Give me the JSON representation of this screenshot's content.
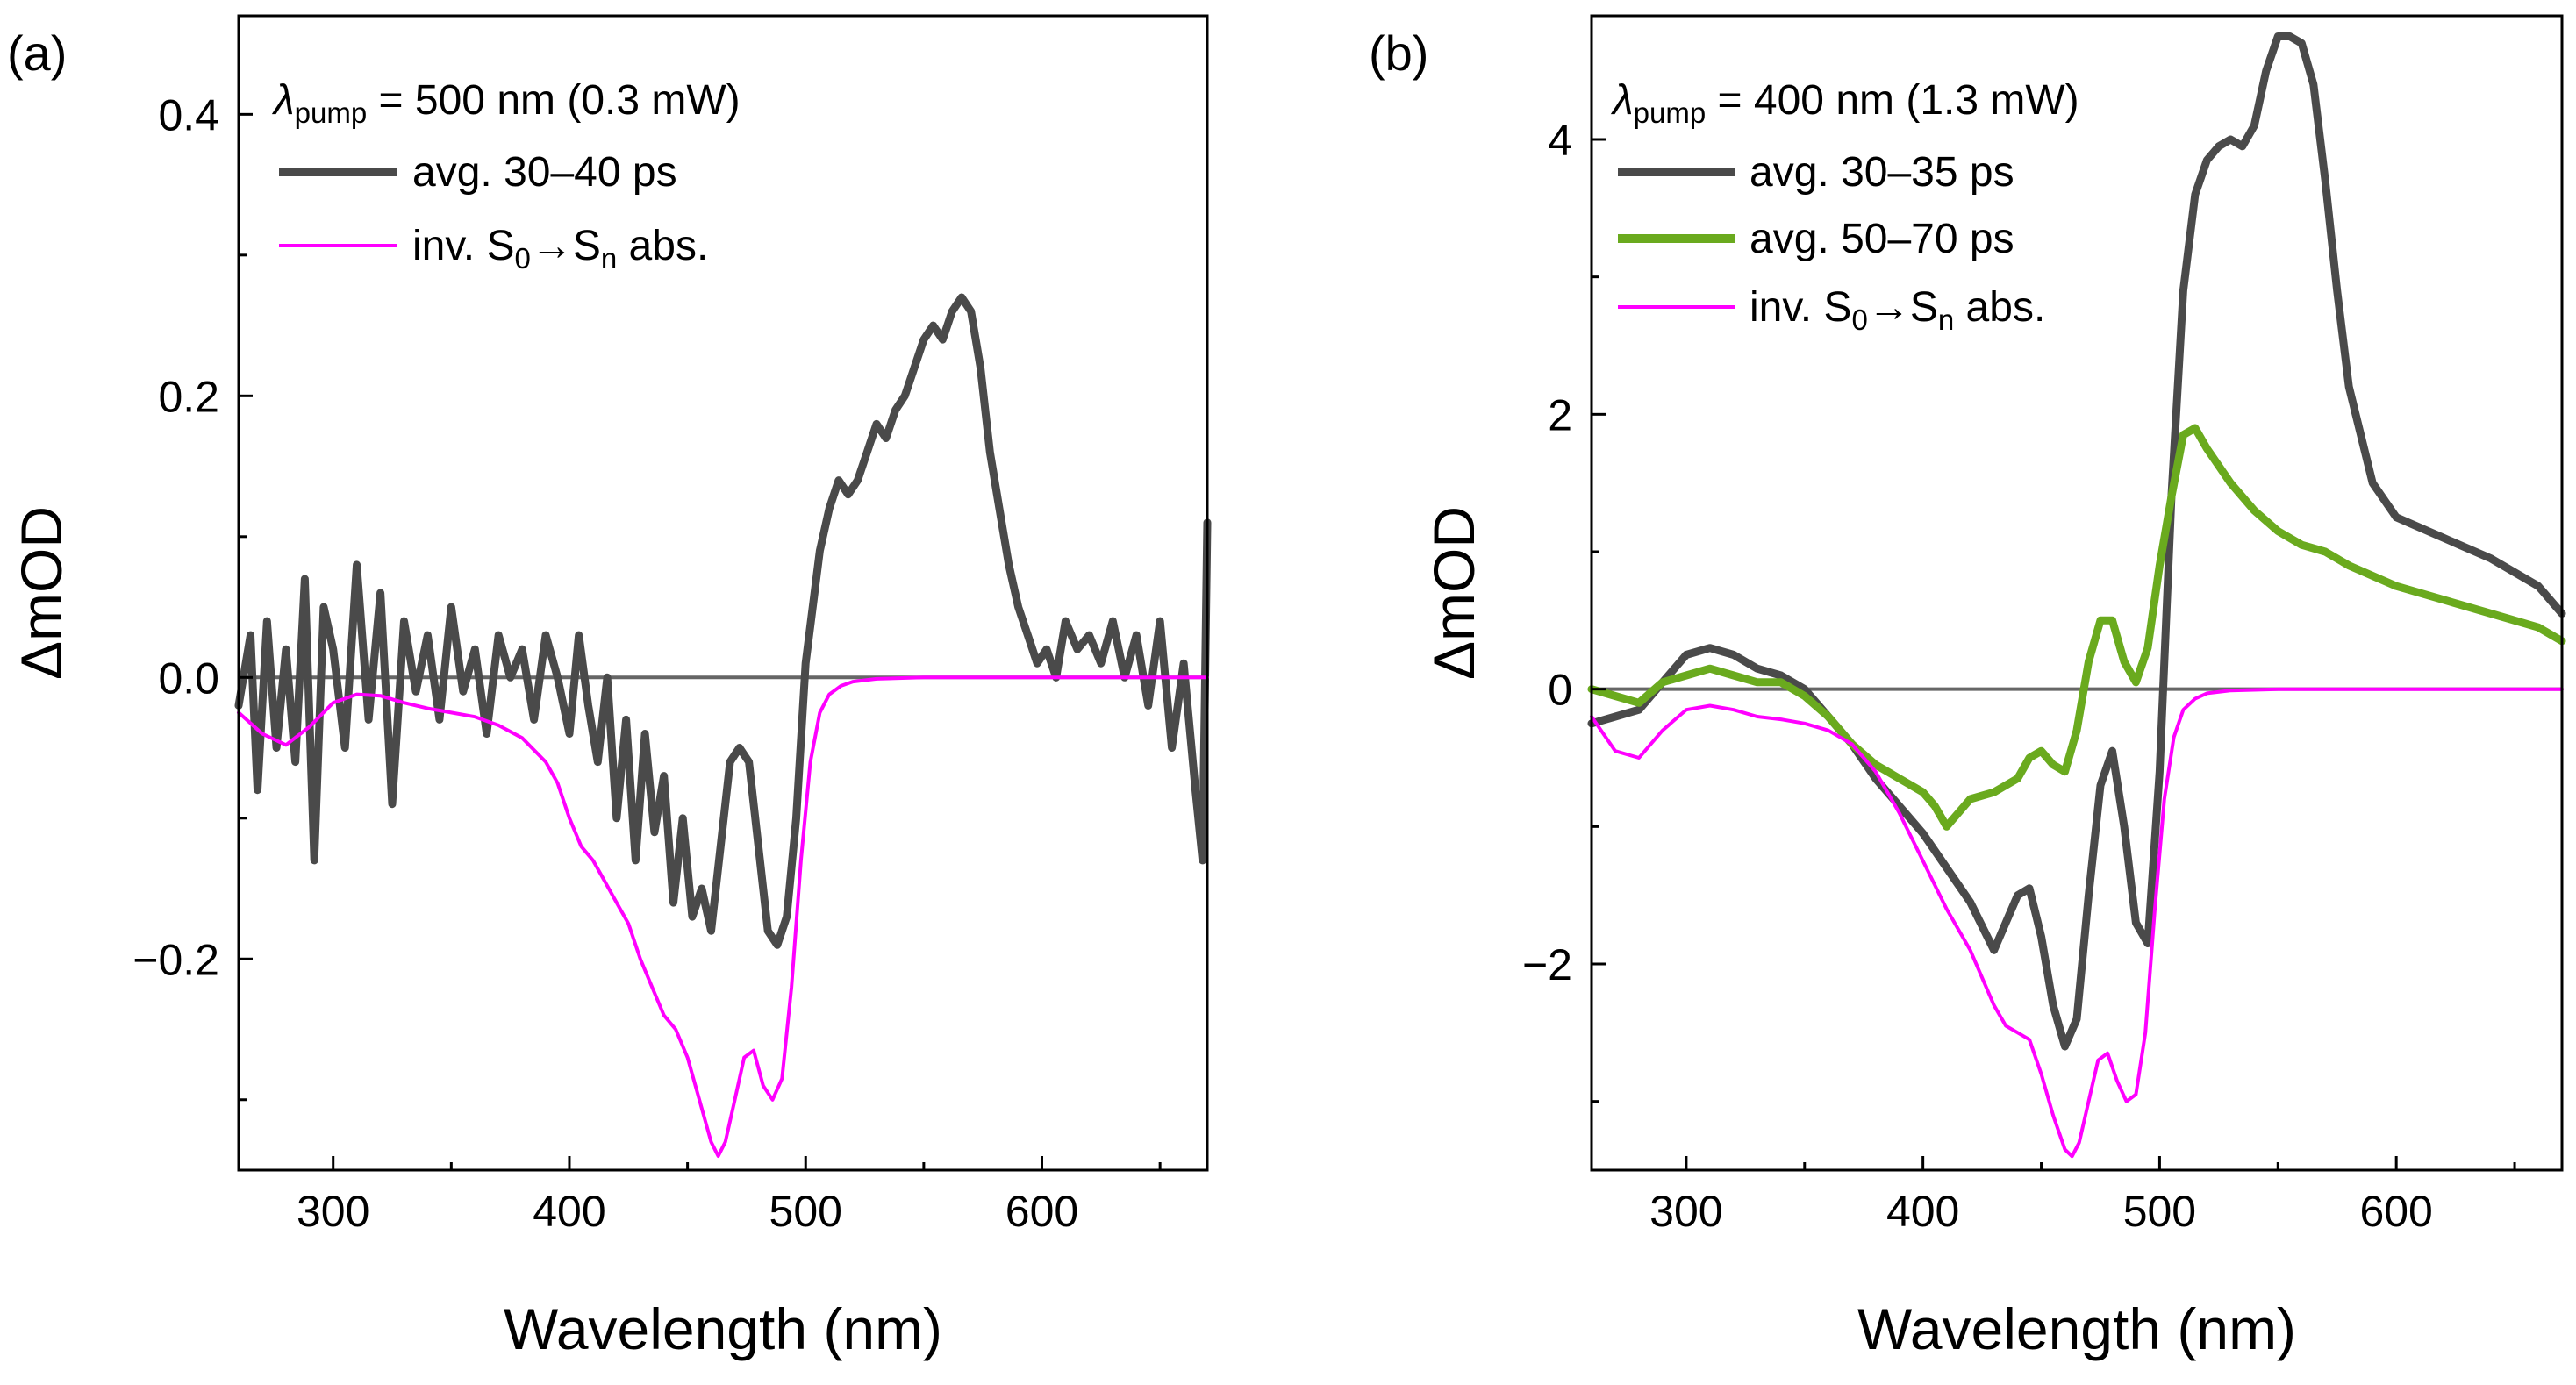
{
  "figure_caption_labels": [
    "(a)",
    "(b)"
  ],
  "chart_data": [
    {
      "type": "line",
      "panel": "(a)",
      "xlabel": "Wavelength (nm)",
      "ylabel": "ΔmOD",
      "xlim": [
        260,
        670
      ],
      "ylim": [
        -0.35,
        0.47
      ],
      "xticks": [
        300,
        400,
        500,
        600
      ],
      "xtick_labels": [
        "300",
        "400",
        "500",
        "600"
      ],
      "yticks": [
        -0.2,
        0.0,
        0.2,
        0.4
      ],
      "ytick_labels": [
        "−0.2",
        "0.0",
        "0.2",
        "0.4"
      ],
      "zero_line": true,
      "legend": {
        "header": {
          "symbol": "λ",
          "sub": "pump",
          "text": " = 500 nm (0.3 mW)"
        },
        "entries": [
          {
            "label": "avg. 30–40 ps"
          },
          {
            "label_parts": [
              "inv. S",
              "0",
              "→S",
              "n",
              " abs."
            ]
          }
        ]
      },
      "series": [
        {
          "name": "avg. 30–40 ps",
          "color": "#4a4a4a",
          "width": 9,
          "x": [
            260,
            265,
            268,
            272,
            276,
            280,
            284,
            288,
            292,
            296,
            300,
            305,
            310,
            315,
            320,
            325,
            330,
            335,
            340,
            345,
            350,
            355,
            360,
            365,
            370,
            375,
            380,
            385,
            390,
            395,
            400,
            404,
            408,
            412,
            416,
            420,
            424,
            428,
            432,
            436,
            440,
            444,
            448,
            452,
            456,
            460,
            464,
            468,
            472,
            476,
            480,
            484,
            488,
            492,
            496,
            500,
            503,
            506,
            510,
            514,
            518,
            522,
            526,
            530,
            534,
            538,
            542,
            546,
            550,
            554,
            558,
            562,
            566,
            570,
            574,
            578,
            582,
            586,
            590,
            594,
            598,
            602,
            606,
            610,
            615,
            620,
            625,
            630,
            635,
            640,
            645,
            650,
            655,
            660,
            665,
            668,
            670
          ],
          "y": [
            -0.02,
            0.03,
            -0.08,
            0.04,
            -0.05,
            0.02,
            -0.06,
            0.07,
            -0.13,
            0.05,
            0.02,
            -0.05,
            0.08,
            -0.03,
            0.06,
            -0.09,
            0.04,
            -0.01,
            0.03,
            -0.03,
            0.05,
            -0.01,
            0.02,
            -0.04,
            0.03,
            0.0,
            0.02,
            -0.03,
            0.03,
            0.0,
            -0.04,
            0.03,
            -0.02,
            -0.06,
            0.0,
            -0.1,
            -0.03,
            -0.13,
            -0.04,
            -0.11,
            -0.07,
            -0.16,
            -0.1,
            -0.17,
            -0.15,
            -0.18,
            -0.12,
            -0.06,
            -0.05,
            -0.06,
            -0.12,
            -0.18,
            -0.19,
            -0.17,
            -0.1,
            0.01,
            0.05,
            0.09,
            0.12,
            0.14,
            0.13,
            0.14,
            0.16,
            0.18,
            0.17,
            0.19,
            0.2,
            0.22,
            0.24,
            0.25,
            0.24,
            0.26,
            0.27,
            0.26,
            0.22,
            0.16,
            0.12,
            0.08,
            0.05,
            0.03,
            0.01,
            0.02,
            0.0,
            0.04,
            0.02,
            0.03,
            0.01,
            0.04,
            0.0,
            0.03,
            -0.02,
            0.04,
            -0.05,
            0.01,
            -0.08,
            -0.13,
            0.11
          ]
        },
        {
          "name": "inv. S0→Sn abs.",
          "color": "#ff00ff",
          "width": 4,
          "x": [
            260,
            270,
            280,
            290,
            300,
            310,
            320,
            330,
            340,
            350,
            360,
            370,
            380,
            390,
            395,
            400,
            405,
            410,
            415,
            420,
            425,
            430,
            435,
            440,
            445,
            450,
            455,
            460,
            463,
            466,
            470,
            474,
            478,
            482,
            486,
            490,
            494,
            498,
            502,
            506,
            510,
            515,
            520,
            530,
            550,
            600,
            670
          ],
          "y": [
            -0.025,
            -0.04,
            -0.048,
            -0.035,
            -0.018,
            -0.012,
            -0.013,
            -0.018,
            -0.022,
            -0.025,
            -0.028,
            -0.034,
            -0.043,
            -0.06,
            -0.075,
            -0.1,
            -0.12,
            -0.13,
            -0.145,
            -0.16,
            -0.175,
            -0.2,
            -0.22,
            -0.24,
            -0.25,
            -0.27,
            -0.3,
            -0.33,
            -0.34,
            -0.33,
            -0.3,
            -0.27,
            -0.265,
            -0.29,
            -0.3,
            -0.285,
            -0.22,
            -0.13,
            -0.06,
            -0.025,
            -0.012,
            -0.006,
            -0.003,
            -0.001,
            0.0,
            0.0,
            0.0
          ]
        }
      ]
    },
    {
      "type": "line",
      "panel": "(b)",
      "xlabel": "Wavelength (nm)",
      "ylabel": "ΔmOD",
      "xlim": [
        260,
        670
      ],
      "ylim": [
        -3.5,
        4.9
      ],
      "xticks": [
        300,
        400,
        500,
        600
      ],
      "xtick_labels": [
        "300",
        "400",
        "500",
        "600"
      ],
      "yticks": [
        -2,
        0,
        2,
        4
      ],
      "ytick_labels": [
        "−2",
        "0",
        "2",
        "4"
      ],
      "zero_line": true,
      "legend": {
        "header": {
          "symbol": "λ",
          "sub": "pump",
          "text": " = 400 nm (1.3 mW)"
        },
        "entries": [
          {
            "label": "avg. 30–35 ps"
          },
          {
            "label": "avg. 50–70 ps"
          },
          {
            "label_parts": [
              "inv. S",
              "0",
              "→S",
              "n",
              " abs."
            ]
          }
        ]
      },
      "series": [
        {
          "name": "avg. 30–35 ps",
          "color": "#4a4a4a",
          "width": 9,
          "x": [
            260,
            270,
            280,
            290,
            300,
            310,
            320,
            330,
            340,
            350,
            360,
            370,
            380,
            390,
            400,
            410,
            420,
            430,
            435,
            440,
            445,
            450,
            455,
            460,
            465,
            470,
            475,
            480,
            485,
            490,
            495,
            500,
            505,
            510,
            515,
            520,
            525,
            530,
            535,
            540,
            545,
            550,
            555,
            560,
            565,
            570,
            575,
            580,
            590,
            600,
            620,
            640,
            660,
            670
          ],
          "y": [
            -0.25,
            -0.2,
            -0.15,
            0.05,
            0.25,
            0.3,
            0.25,
            0.15,
            0.1,
            0.0,
            -0.2,
            -0.4,
            -0.65,
            -0.85,
            -1.05,
            -1.3,
            -1.55,
            -1.9,
            -1.7,
            -1.5,
            -1.45,
            -1.8,
            -2.3,
            -2.6,
            -2.4,
            -1.5,
            -0.7,
            -0.45,
            -1.0,
            -1.7,
            -1.85,
            -0.6,
            1.4,
            2.9,
            3.6,
            3.85,
            3.95,
            4.0,
            3.95,
            4.1,
            4.5,
            4.75,
            4.75,
            4.7,
            4.4,
            3.7,
            2.9,
            2.2,
            1.5,
            1.25,
            1.1,
            0.95,
            0.75,
            0.55
          ]
        },
        {
          "name": "avg. 50–70 ps",
          "color": "#6aaa1e",
          "width": 9,
          "x": [
            260,
            270,
            280,
            290,
            300,
            310,
            320,
            330,
            340,
            350,
            360,
            370,
            380,
            390,
            400,
            405,
            410,
            415,
            420,
            430,
            440,
            445,
            450,
            455,
            460,
            465,
            470,
            475,
            480,
            485,
            490,
            495,
            500,
            505,
            510,
            515,
            520,
            530,
            540,
            550,
            560,
            570,
            580,
            600,
            620,
            640,
            660,
            670
          ],
          "y": [
            0.0,
            -0.05,
            -0.1,
            0.05,
            0.1,
            0.15,
            0.1,
            0.05,
            0.05,
            -0.05,
            -0.2,
            -0.4,
            -0.55,
            -0.65,
            -0.75,
            -0.85,
            -1.0,
            -0.9,
            -0.8,
            -0.75,
            -0.65,
            -0.5,
            -0.45,
            -0.55,
            -0.6,
            -0.3,
            0.2,
            0.5,
            0.5,
            0.2,
            0.05,
            0.3,
            0.9,
            1.4,
            1.85,
            1.9,
            1.75,
            1.5,
            1.3,
            1.15,
            1.05,
            1.0,
            0.9,
            0.75,
            0.65,
            0.55,
            0.45,
            0.35
          ]
        },
        {
          "name": "inv. S0→Sn abs.",
          "color": "#ff00ff",
          "width": 4,
          "x": [
            260,
            270,
            280,
            290,
            300,
            310,
            320,
            330,
            340,
            350,
            360,
            370,
            380,
            390,
            400,
            410,
            420,
            430,
            435,
            440,
            445,
            450,
            455,
            460,
            463,
            466,
            470,
            474,
            478,
            482,
            486,
            490,
            494,
            498,
            502,
            506,
            510,
            515,
            520,
            530,
            550,
            600,
            670
          ],
          "y": [
            -0.2,
            -0.45,
            -0.5,
            -0.3,
            -0.15,
            -0.12,
            -0.15,
            -0.2,
            -0.22,
            -0.25,
            -0.3,
            -0.4,
            -0.6,
            -0.9,
            -1.25,
            -1.6,
            -1.9,
            -2.3,
            -2.45,
            -2.5,
            -2.55,
            -2.8,
            -3.1,
            -3.35,
            -3.4,
            -3.3,
            -3.0,
            -2.7,
            -2.65,
            -2.85,
            -3.0,
            -2.95,
            -2.5,
            -1.6,
            -0.8,
            -0.35,
            -0.15,
            -0.07,
            -0.03,
            -0.01,
            0.0,
            0.0,
            0.0
          ]
        }
      ]
    }
  ]
}
